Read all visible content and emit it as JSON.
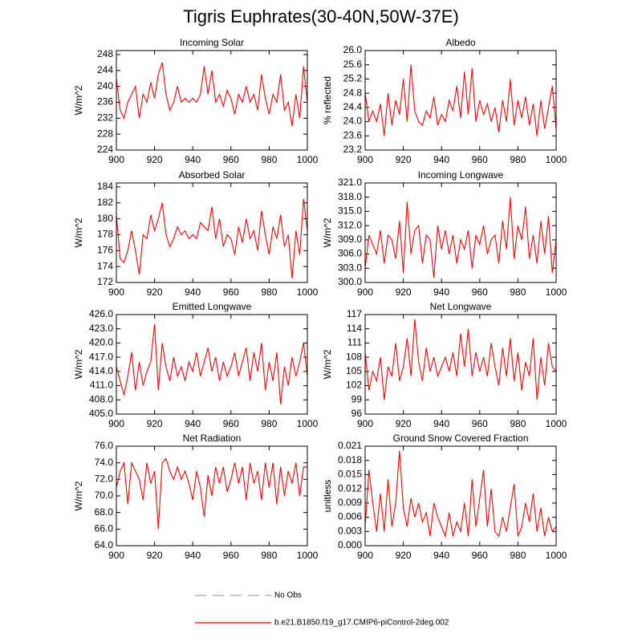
{
  "title": "Tigris Euphrates(30-40N,50W-37E)",
  "legend": [
    {
      "name": "No Obs",
      "color": "#a0a0e8",
      "dash": true
    },
    {
      "name": "b.e21.B1850.f19_g17.CMIP6-piControl-2deg.002",
      "color": "#ff0000",
      "dash": false
    }
  ],
  "chart_data": [
    {
      "type": "line",
      "title": "Incoming Solar",
      "y_label": "W/m^2",
      "x": [
        900,
        902,
        904,
        906,
        908,
        910,
        912,
        914,
        916,
        918,
        920,
        922,
        924,
        926,
        928,
        930,
        932,
        934,
        936,
        938,
        940,
        942,
        944,
        946,
        948,
        950,
        952,
        954,
        956,
        958,
        960,
        962,
        964,
        966,
        968,
        970,
        972,
        974,
        976,
        978,
        980,
        982,
        984,
        986,
        988,
        990,
        992,
        994,
        996,
        998,
        1000
      ],
      "values": [
        242,
        234,
        232,
        236,
        238,
        240,
        232,
        238,
        236,
        241,
        237,
        243,
        246,
        238,
        234,
        236,
        240,
        236,
        237,
        236,
        237,
        236,
        238,
        245,
        238,
        244,
        236,
        238,
        235,
        239,
        237,
        233,
        238,
        236,
        240,
        236,
        238,
        234,
        243,
        237,
        233,
        238,
        236,
        243,
        234,
        236,
        230,
        238,
        232,
        245,
        236
      ],
      "xlim": [
        900,
        1000
      ],
      "xticks": [
        900,
        920,
        940,
        960,
        980,
        1000
      ],
      "ylim": [
        224,
        249
      ],
      "yticks": [
        224,
        228,
        232,
        236,
        240,
        244,
        248
      ]
    },
    {
      "type": "line",
      "title": "Albedo",
      "y_label": "% reflected",
      "x": [
        900,
        902,
        904,
        906,
        908,
        910,
        912,
        914,
        916,
        918,
        920,
        922,
        924,
        926,
        928,
        930,
        932,
        934,
        936,
        938,
        940,
        942,
        944,
        946,
        948,
        950,
        952,
        954,
        956,
        958,
        960,
        962,
        964,
        966,
        968,
        970,
        972,
        974,
        976,
        978,
        980,
        982,
        984,
        986,
        988,
        990,
        992,
        994,
        996,
        998,
        1000
      ],
      "values": [
        24.8,
        24.0,
        24.3,
        24.0,
        24.5,
        23.6,
        24.8,
        23.9,
        24.6,
        24.2,
        25.2,
        24.0,
        25.6,
        24.3,
        24.0,
        23.9,
        24.3,
        24.1,
        24.7,
        23.9,
        24.2,
        24.0,
        24.6,
        24.3,
        25.0,
        24.1,
        25.4,
        24.2,
        25.5,
        24.0,
        24.6,
        24.2,
        24.5,
        24.0,
        24.4,
        23.7,
        24.6,
        24.0,
        25.2,
        23.9,
        24.6,
        24.1,
        24.7,
        23.9,
        24.5,
        23.6,
        24.6,
        23.8,
        24.4,
        25.0,
        23.8
      ],
      "xlim": [
        900,
        1000
      ],
      "xticks": [
        900,
        920,
        940,
        960,
        980,
        1000
      ],
      "ylim": [
        23.2,
        26.0
      ],
      "yticks": [
        23.2,
        23.6,
        {
          "value": 24,
          "label": "24.0"
        },
        24.4,
        24.8,
        25.2,
        25.6,
        {
          "value": 26,
          "label": "26.0"
        }
      ]
    },
    {
      "type": "line",
      "title": "Absorbed Solar",
      "y_label": "W/m^2",
      "x": [
        900,
        902,
        904,
        906,
        908,
        910,
        912,
        914,
        916,
        918,
        920,
        922,
        924,
        926,
        928,
        930,
        932,
        934,
        936,
        938,
        940,
        942,
        944,
        946,
        948,
        950,
        952,
        954,
        956,
        958,
        960,
        962,
        964,
        966,
        968,
        970,
        972,
        974,
        976,
        978,
        980,
        982,
        984,
        986,
        988,
        990,
        992,
        994,
        996,
        998,
        1000
      ],
      "values": [
        180.5,
        175,
        174.5,
        176,
        178.5,
        176,
        173,
        178,
        177.5,
        180.5,
        178.5,
        180,
        182,
        178,
        176.5,
        177.5,
        179,
        178,
        178.5,
        177.5,
        178,
        177.5,
        179.5,
        179,
        178.5,
        181.5,
        177.5,
        180,
        176.5,
        178,
        177.5,
        175.5,
        179,
        177,
        180,
        177.5,
        178.5,
        176,
        181,
        178,
        175.5,
        179,
        177.5,
        180.5,
        176.5,
        178,
        172.5,
        178.5,
        175.5,
        182.5,
        178.5
      ],
      "xlim": [
        900,
        1000
      ],
      "xticks": [
        900,
        920,
        940,
        960,
        980,
        1000
      ],
      "ylim": [
        172,
        184.5
      ],
      "yticks": [
        172,
        174,
        176,
        178,
        180,
        182,
        184
      ]
    },
    {
      "type": "line",
      "title": "Incoming Longwave",
      "y_label": "W/m^2",
      "x": [
        900,
        902,
        904,
        906,
        908,
        910,
        912,
        914,
        916,
        918,
        920,
        922,
        924,
        926,
        928,
        930,
        932,
        934,
        936,
        938,
        940,
        942,
        944,
        946,
        948,
        950,
        952,
        954,
        956,
        958,
        960,
        962,
        964,
        966,
        968,
        970,
        972,
        974,
        976,
        978,
        980,
        982,
        984,
        986,
        988,
        990,
        992,
        994,
        996,
        998,
        1000
      ],
      "values": [
        303,
        310,
        308,
        306,
        311,
        304,
        310,
        309,
        305,
        313,
        302,
        317,
        306,
        311,
        312,
        304,
        310,
        309,
        301,
        312,
        307,
        311,
        306,
        310,
        304,
        309,
        307,
        311,
        303,
        310,
        308,
        312,
        306,
        309,
        310,
        304,
        313,
        307,
        318,
        305,
        312,
        309,
        316,
        305,
        310,
        304,
        313,
        306,
        314,
        302,
        309
      ],
      "xlim": [
        900,
        1000
      ],
      "xticks": [
        900,
        920,
        940,
        960,
        980,
        1000
      ],
      "ylim": [
        300,
        321
      ],
      "yticks": [
        {
          "value": 300,
          "label": "300.0"
        },
        {
          "value": 303,
          "label": "303.0"
        },
        {
          "value": 306,
          "label": "306.0"
        },
        {
          "value": 309,
          "label": "309.0"
        },
        {
          "value": 312,
          "label": "312.0"
        },
        {
          "value": 315,
          "label": "315.0"
        },
        {
          "value": 318,
          "label": "318.0"
        },
        {
          "value": 321,
          "label": "321.0"
        }
      ]
    },
    {
      "type": "line",
      "title": "Emitted Longwave",
      "y_label": "W/m^2",
      "x": [
        900,
        902,
        904,
        906,
        908,
        910,
        912,
        914,
        916,
        918,
        920,
        922,
        924,
        926,
        928,
        930,
        932,
        934,
        936,
        938,
        940,
        942,
        944,
        946,
        948,
        950,
        952,
        954,
        956,
        958,
        960,
        962,
        964,
        966,
        968,
        970,
        972,
        974,
        976,
        978,
        980,
        982,
        984,
        986,
        988,
        990,
        992,
        994,
        996,
        998,
        1000
      ],
      "values": [
        415,
        412,
        409,
        413,
        418,
        410,
        416,
        411,
        414,
        416,
        424,
        410,
        420,
        415,
        412,
        417,
        413,
        415,
        412,
        416,
        414,
        418,
        413,
        416,
        419,
        414,
        417,
        412,
        416,
        413,
        415,
        418,
        413,
        416,
        419,
        412,
        418,
        414,
        420,
        410,
        416,
        412,
        418,
        407,
        415,
        411,
        417,
        413,
        416,
        420,
        413
      ],
      "xlim": [
        900,
        1000
      ],
      "xticks": [
        900,
        920,
        940,
        960,
        980,
        1000
      ],
      "ylim": [
        405,
        426
      ],
      "yticks": [
        {
          "value": 405,
          "label": "405.0"
        },
        {
          "value": 408,
          "label": "408.0"
        },
        {
          "value": 411,
          "label": "411.0"
        },
        {
          "value": 414,
          "label": "414.0"
        },
        {
          "value": 417,
          "label": "417.0"
        },
        {
          "value": 420,
          "label": "420.0"
        },
        {
          "value": 423,
          "label": "423.0"
        },
        {
          "value": 426,
          "label": "426.0"
        }
      ]
    },
    {
      "type": "line",
      "title": "Net Longwave",
      "y_label": "W/m^2",
      "x": [
        900,
        902,
        904,
        906,
        908,
        910,
        912,
        914,
        916,
        918,
        920,
        922,
        924,
        926,
        928,
        930,
        932,
        934,
        936,
        938,
        940,
        942,
        944,
        946,
        948,
        950,
        952,
        954,
        956,
        958,
        960,
        962,
        964,
        966,
        968,
        970,
        972,
        974,
        976,
        978,
        980,
        982,
        984,
        986,
        988,
        990,
        992,
        994,
        996,
        998,
        1000
      ],
      "values": [
        109,
        101,
        105,
        103,
        108,
        99,
        106,
        104,
        111,
        103,
        106,
        112,
        104,
        116,
        107,
        103,
        110,
        105,
        108,
        104,
        106,
        108,
        105,
        109,
        104,
        113,
        106,
        114,
        104,
        109,
        105,
        108,
        104,
        111,
        106,
        102,
        110,
        104,
        112,
        103,
        109,
        101,
        107,
        104,
        112,
        99,
        108,
        102,
        111,
        106,
        105
      ],
      "xlim": [
        900,
        1000
      ],
      "xticks": [
        900,
        920,
        940,
        960,
        980,
        1000
      ],
      "ylim": [
        96,
        117
      ],
      "yticks": [
        96,
        99,
        102,
        105,
        108,
        111,
        114,
        117
      ]
    },
    {
      "type": "line",
      "title": "Net Radiation",
      "y_label": "W/m^2",
      "x": [
        900,
        902,
        904,
        906,
        908,
        910,
        912,
        914,
        916,
        918,
        920,
        922,
        924,
        926,
        928,
        930,
        932,
        934,
        936,
        938,
        940,
        942,
        944,
        946,
        948,
        950,
        952,
        954,
        956,
        958,
        960,
        962,
        964,
        966,
        968,
        970,
        972,
        974,
        976,
        978,
        980,
        982,
        984,
        986,
        988,
        990,
        992,
        994,
        996,
        998,
        1000
      ],
      "values": [
        71,
        73,
        74,
        69,
        74,
        73,
        72,
        69.5,
        74,
        71.5,
        73,
        66,
        74,
        74.5,
        73,
        72,
        73.5,
        72,
        73,
        71.5,
        69.5,
        73,
        71,
        67.5,
        72.5,
        70,
        73.5,
        71.5,
        73.5,
        70.5,
        72,
        74,
        71.5,
        73.5,
        69.5,
        74,
        71.5,
        73,
        69.5,
        74,
        71,
        74,
        69,
        73.5,
        70,
        73,
        71.5,
        74,
        70,
        73.5,
        73.5
      ],
      "xlim": [
        900,
        1000
      ],
      "xticks": [
        900,
        920,
        940,
        960,
        980,
        1000
      ],
      "ylim": [
        64,
        76
      ],
      "yticks": [
        {
          "value": 64,
          "label": "64.0"
        },
        {
          "value": 66,
          "label": "66.0"
        },
        {
          "value": 68,
          "label": "68.0"
        },
        {
          "value": 70,
          "label": "70.0"
        },
        {
          "value": 72,
          "label": "72.0"
        },
        {
          "value": 74,
          "label": "74.0"
        },
        {
          "value": 76,
          "label": "76.0"
        }
      ]
    },
    {
      "type": "line",
      "title": "Ground Snow Covered Fraction",
      "y_label": "unitless",
      "x": [
        900,
        902,
        904,
        906,
        908,
        910,
        912,
        914,
        916,
        918,
        920,
        922,
        924,
        926,
        928,
        930,
        932,
        934,
        936,
        938,
        940,
        942,
        944,
        946,
        948,
        950,
        952,
        954,
        956,
        958,
        960,
        962,
        964,
        966,
        968,
        970,
        972,
        974,
        976,
        978,
        980,
        982,
        984,
        986,
        988,
        990,
        992,
        994,
        996,
        998,
        1000
      ],
      "values": [
        0.004,
        0.016,
        0.009,
        0.003,
        0.011,
        0.003,
        0.014,
        0.004,
        0.009,
        0.02,
        0.008,
        0.004,
        0.01,
        0.006,
        0.009,
        0.005,
        0.007,
        0.002,
        0.009,
        0.006,
        0.004,
        0.002,
        0.007,
        0.002,
        0.005,
        0.003,
        0.009,
        0.002,
        0.014,
        0.004,
        0.01,
        0.016,
        0.004,
        0.012,
        0.003,
        0.002,
        0.006,
        0.003,
        0.008,
        0.013,
        0.002,
        0.004,
        0.009,
        0.005,
        0.011,
        0.003,
        0.008,
        0.002,
        0.006,
        0.003,
        0.004
      ],
      "xlim": [
        900,
        1000
      ],
      "xticks": [
        900,
        920,
        940,
        960,
        980,
        1000
      ],
      "ylim": [
        0,
        0.021
      ],
      "yticks": [
        {
          "value": 0,
          "label": "0.000"
        },
        0.003,
        0.006,
        0.009,
        0.012,
        0.015,
        0.018,
        0.021
      ]
    }
  ]
}
